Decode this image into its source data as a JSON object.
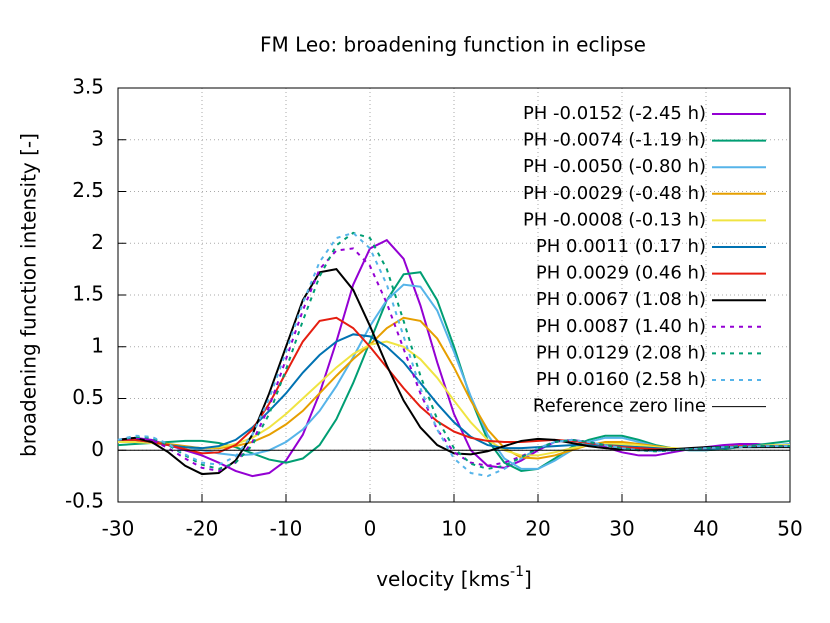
{
  "chart_data": {
    "type": "line",
    "title": "FM Leo: broadening function in eclipse",
    "xlabel": [
      "velocity [kms",
      "-1",
      "]"
    ],
    "ylabel": "broadening function intensity [-]",
    "xlim": [
      -30,
      50
    ],
    "ylim": [
      -0.5,
      3.5
    ],
    "xticks": [
      -30,
      -20,
      -10,
      0,
      10,
      20,
      30,
      40,
      50
    ],
    "yticks": [
      -0.5,
      0,
      0.5,
      1,
      1.5,
      2,
      2.5,
      3,
      3.5
    ],
    "grid": true,
    "legend": "upper right",
    "x": [
      -30,
      -28,
      -26,
      -24,
      -22,
      -20,
      -18,
      -16,
      -14,
      -12,
      -10,
      -8,
      -6,
      -4,
      -2,
      0,
      2,
      4,
      6,
      8,
      10,
      12,
      14,
      16,
      18,
      20,
      22,
      24,
      26,
      28,
      30,
      32,
      34,
      36,
      38,
      40,
      42,
      44,
      46,
      48,
      50
    ],
    "series": [
      {
        "name": "PH -0.0152 (-2.45 h)",
        "color": "#9400d3",
        "dash": false,
        "values": [
          0.1,
          0.12,
          0.1,
          0.05,
          0.0,
          -0.05,
          -0.12,
          -0.2,
          -0.25,
          -0.22,
          -0.1,
          0.15,
          0.55,
          1.05,
          1.6,
          1.95,
          2.03,
          1.85,
          1.4,
          0.85,
          0.35,
          0.0,
          -0.15,
          -0.17,
          -0.1,
          0.0,
          0.08,
          0.1,
          0.08,
          0.03,
          -0.02,
          -0.05,
          -0.05,
          -0.02,
          0.01,
          0.03,
          0.05,
          0.06,
          0.06,
          0.05,
          0.04
        ]
      },
      {
        "name": "PH -0.0074 (-1.19 h)",
        "color": "#009e73",
        "dash": false,
        "values": [
          0.05,
          0.06,
          0.07,
          0.08,
          0.09,
          0.09,
          0.07,
          0.03,
          -0.03,
          -0.09,
          -0.12,
          -0.08,
          0.05,
          0.3,
          0.65,
          1.05,
          1.45,
          1.7,
          1.72,
          1.45,
          1.0,
          0.5,
          0.1,
          -0.12,
          -0.2,
          -0.18,
          -0.08,
          0.03,
          0.1,
          0.14,
          0.14,
          0.1,
          0.05,
          0.02,
          0.0,
          0.0,
          0.01,
          0.03,
          0.05,
          0.07,
          0.09
        ]
      },
      {
        "name": "PH -0.0050 (-0.80 h)",
        "color": "#56b4e9",
        "dash": false,
        "values": [
          0.08,
          0.08,
          0.07,
          0.05,
          0.03,
          0.0,
          -0.03,
          -0.05,
          -0.04,
          0.0,
          0.08,
          0.2,
          0.38,
          0.62,
          0.9,
          1.2,
          1.45,
          1.6,
          1.58,
          1.35,
          0.95,
          0.52,
          0.15,
          -0.08,
          -0.18,
          -0.18,
          -0.1,
          0.0,
          0.08,
          0.12,
          0.12,
          0.08,
          0.04,
          0.01,
          0.0,
          0.0,
          0.02,
          0.03,
          0.04,
          0.05,
          0.06
        ]
      },
      {
        "name": "PH -0.0029 (-0.48 h)",
        "color": "#e69f00",
        "dash": false,
        "values": [
          0.1,
          0.1,
          0.08,
          0.06,
          0.04,
          0.02,
          0.02,
          0.04,
          0.08,
          0.15,
          0.25,
          0.38,
          0.55,
          0.72,
          0.88,
          1.02,
          1.18,
          1.28,
          1.25,
          1.08,
          0.8,
          0.48,
          0.2,
          0.02,
          -0.07,
          -0.08,
          -0.05,
          0.0,
          0.05,
          0.08,
          0.08,
          0.06,
          0.04,
          0.02,
          0.01,
          0.01,
          0.02,
          0.03,
          0.04,
          0.04,
          0.04
        ]
      },
      {
        "name": "PH -0.0008 (-0.13 h)",
        "color": "#f0e442",
        "dash": false,
        "values": [
          0.08,
          0.08,
          0.07,
          0.05,
          0.03,
          0.02,
          0.03,
          0.06,
          0.12,
          0.22,
          0.35,
          0.5,
          0.65,
          0.8,
          0.93,
          1.02,
          1.05,
          1.0,
          0.88,
          0.7,
          0.48,
          0.27,
          0.1,
          0.0,
          -0.05,
          -0.05,
          -0.02,
          0.02,
          0.05,
          0.06,
          0.06,
          0.05,
          0.03,
          0.02,
          0.01,
          0.01,
          0.02,
          0.03,
          0.04,
          0.05,
          0.05
        ]
      },
      {
        "name": "PH 0.0011 (0.17 h)",
        "color": "#0072b2",
        "dash": false,
        "values": [
          0.1,
          0.1,
          0.08,
          0.05,
          0.03,
          0.02,
          0.04,
          0.1,
          0.22,
          0.38,
          0.55,
          0.75,
          0.92,
          1.05,
          1.12,
          1.1,
          1.0,
          0.85,
          0.65,
          0.45,
          0.27,
          0.13,
          0.05,
          0.02,
          0.02,
          0.03,
          0.04,
          0.05,
          0.05,
          0.05,
          0.04,
          0.03,
          0.02,
          0.01,
          0.01,
          0.01,
          0.02,
          0.03,
          0.03,
          0.04,
          0.04
        ]
      },
      {
        "name": "PH 0.0029 (0.46 h)",
        "color": "#e51e10",
        "dash": false,
        "values": [
          0.1,
          0.1,
          0.08,
          0.05,
          0.01,
          -0.03,
          -0.02,
          0.05,
          0.2,
          0.45,
          0.75,
          1.05,
          1.25,
          1.28,
          1.18,
          1.0,
          0.8,
          0.6,
          0.42,
          0.28,
          0.18,
          0.12,
          0.09,
          0.08,
          0.08,
          0.09,
          0.1,
          0.09,
          0.07,
          0.05,
          0.03,
          0.02,
          0.01,
          0.01,
          0.01,
          0.02,
          0.03,
          0.04,
          0.04,
          0.04,
          0.04
        ]
      },
      {
        "name": "PH 0.0067 (1.08 h)",
        "color": "#000000",
        "dash": false,
        "values": [
          0.1,
          0.12,
          0.08,
          -0.02,
          -0.15,
          -0.23,
          -0.22,
          -0.1,
          0.15,
          0.55,
          1.0,
          1.45,
          1.72,
          1.75,
          1.55,
          1.2,
          0.82,
          0.48,
          0.22,
          0.05,
          -0.03,
          -0.04,
          -0.01,
          0.04,
          0.09,
          0.11,
          0.1,
          0.07,
          0.04,
          0.02,
          0.01,
          0.0,
          0.0,
          0.01,
          0.02,
          0.03,
          0.03,
          0.03,
          0.03,
          0.03,
          0.03
        ]
      },
      {
        "name": "PH 0.0087 (1.40 h)",
        "color": "#9400d3",
        "dash": true,
        "values": [
          0.1,
          0.12,
          0.1,
          0.02,
          -0.08,
          -0.17,
          -0.2,
          -0.12,
          0.08,
          0.42,
          0.88,
          1.35,
          1.75,
          1.93,
          1.95,
          1.78,
          1.42,
          0.98,
          0.55,
          0.2,
          -0.02,
          -0.12,
          -0.15,
          -0.12,
          -0.06,
          0.02,
          0.08,
          0.1,
          0.08,
          0.05,
          0.02,
          0.0,
          -0.01,
          0.0,
          0.01,
          0.02,
          0.03,
          0.04,
          0.04,
          0.04,
          0.04
        ]
      },
      {
        "name": "PH 0.0129 (2.08 h)",
        "color": "#009e73",
        "dash": true,
        "values": [
          0.1,
          0.13,
          0.12,
          0.05,
          -0.05,
          -0.14,
          -0.18,
          -0.12,
          0.05,
          0.35,
          0.78,
          1.25,
          1.68,
          1.98,
          2.1,
          2.05,
          1.75,
          1.25,
          0.72,
          0.3,
          0.02,
          -0.13,
          -0.18,
          -0.15,
          -0.07,
          0.02,
          0.08,
          0.1,
          0.08,
          0.05,
          0.02,
          0.0,
          -0.01,
          0.0,
          0.01,
          0.02,
          0.03,
          0.04,
          0.04,
          0.04,
          0.04
        ]
      },
      {
        "name": "PH 0.0160 (2.58 h)",
        "color": "#56b4e9",
        "dash": true,
        "values": [
          0.1,
          0.14,
          0.13,
          0.06,
          -0.04,
          -0.12,
          -0.14,
          -0.06,
          0.15,
          0.5,
          0.95,
          1.42,
          1.82,
          2.05,
          2.1,
          1.95,
          1.6,
          1.1,
          0.6,
          0.2,
          -0.08,
          -0.22,
          -0.25,
          -0.18,
          -0.08,
          0.02,
          0.08,
          0.1,
          0.08,
          0.05,
          0.02,
          0.0,
          -0.01,
          0.0,
          0.01,
          0.02,
          0.03,
          0.03,
          0.04,
          0.04,
          0.04
        ]
      },
      {
        "name": "Reference zero line",
        "color": "#000000",
        "dash": false,
        "thin": true,
        "x": [
          -30,
          50
        ],
        "values": [
          0,
          0
        ]
      }
    ]
  }
}
